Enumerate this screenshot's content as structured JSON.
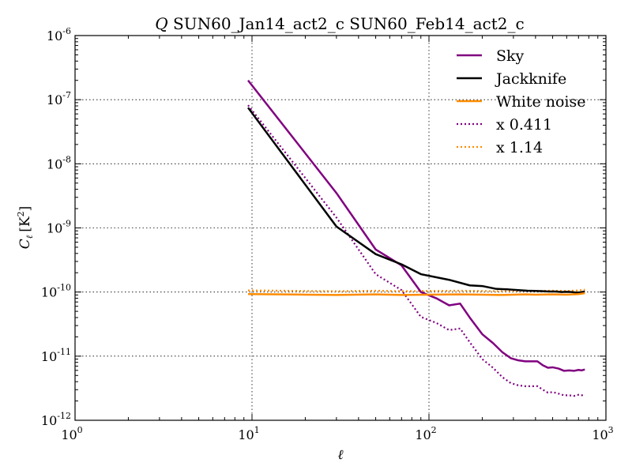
{
  "chart_data": {
    "type": "line",
    "title": "SUN60_Jan14_act2_c SUN60_Feb14_act2_c",
    "title_prefix": "Q",
    "xlabel": "ℓ",
    "ylabel": "Cℓ [K²]",
    "ylabel_parts": {
      "symbol": "C",
      "subscript": "ℓ",
      "unit": "[K",
      "power": "2",
      "close": "]"
    },
    "xscale": "log",
    "yscale": "log",
    "xlim": [
      1,
      1000
    ],
    "ylim": [
      1e-12,
      1e-06
    ],
    "grid": true,
    "legend_position": "top-right",
    "x_ticks": [
      {
        "base": "10",
        "exp": "0"
      },
      {
        "base": "10",
        "exp": "1"
      },
      {
        "base": "10",
        "exp": "2"
      },
      {
        "base": "10",
        "exp": "3"
      }
    ],
    "y_ticks": [
      {
        "base": "10",
        "exp": "-12"
      },
      {
        "base": "10",
        "exp": "-11"
      },
      {
        "base": "10",
        "exp": "-10"
      },
      {
        "base": "10",
        "exp": "-9"
      },
      {
        "base": "10",
        "exp": "-8"
      },
      {
        "base": "10",
        "exp": "-7"
      },
      {
        "base": "10",
        "exp": "-6"
      }
    ],
    "series": [
      {
        "name": "Sky",
        "color": "#800080",
        "style": "solid",
        "points": [
          [
            9.5,
            2e-07
          ],
          [
            30,
            3.5e-09
          ],
          [
            50,
            4.6e-10
          ],
          [
            70,
            2.6e-10
          ],
          [
            90,
            1e-10
          ],
          [
            110,
            8e-11
          ],
          [
            130,
            6.2e-11
          ],
          [
            150,
            6.6e-11
          ],
          [
            170,
            4e-11
          ],
          [
            200,
            2.2e-11
          ],
          [
            230,
            1.6e-11
          ],
          [
            260,
            1.15e-11
          ],
          [
            290,
            9.3e-12
          ],
          [
            320,
            8.6e-12
          ],
          [
            350,
            8.3e-12
          ],
          [
            380,
            8.3e-12
          ],
          [
            410,
            8.3e-12
          ],
          [
            440,
            7.2e-12
          ],
          [
            470,
            6.6e-12
          ],
          [
            500,
            6.7e-12
          ],
          [
            540,
            6.4e-12
          ],
          [
            580,
            5.9e-12
          ],
          [
            620,
            6e-12
          ],
          [
            660,
            5.9e-12
          ],
          [
            700,
            6.1e-12
          ],
          [
            730,
            6e-12
          ],
          [
            760,
            6.2e-12
          ]
        ]
      },
      {
        "name": "Jackknife",
        "color": "#000000",
        "style": "solid",
        "points": [
          [
            9.5,
            7.5e-08
          ],
          [
            30,
            1.05e-09
          ],
          [
            50,
            3.9e-10
          ],
          [
            70,
            2.7e-10
          ],
          [
            90,
            1.9e-10
          ],
          [
            130,
            1.55e-10
          ],
          [
            170,
            1.27e-10
          ],
          [
            200,
            1.24e-10
          ],
          [
            240,
            1.12e-10
          ],
          [
            280,
            1.1e-10
          ],
          [
            320,
            1.07e-10
          ],
          [
            360,
            1.05e-10
          ],
          [
            400,
            1.04e-10
          ],
          [
            440,
            1.03e-10
          ],
          [
            480,
            1.02e-10
          ],
          [
            520,
            1.02e-10
          ],
          [
            560,
            1e-10
          ],
          [
            600,
            1.01e-10
          ],
          [
            640,
            1e-10
          ],
          [
            680,
            9.8e-11
          ],
          [
            720,
            9.9e-11
          ],
          [
            760,
            1.02e-10
          ]
        ]
      },
      {
        "name": "White noise",
        "color": "#ff8c00",
        "style": "solid",
        "points": [
          [
            9.5,
            9.3e-11
          ],
          [
            15,
            9.2e-11
          ],
          [
            20,
            9.1e-11
          ],
          [
            30,
            9e-11
          ],
          [
            50,
            9.2e-11
          ],
          [
            70,
            9e-11
          ],
          [
            100,
            9.1e-11
          ],
          [
            150,
            9.2e-11
          ],
          [
            200,
            9.1e-11
          ],
          [
            250,
            9e-11
          ],
          [
            300,
            9.1e-11
          ],
          [
            350,
            9.2e-11
          ],
          [
            400,
            9.1e-11
          ],
          [
            500,
            9.2e-11
          ],
          [
            600,
            9.1e-11
          ],
          [
            700,
            9.3e-11
          ],
          [
            760,
            9.6e-11
          ]
        ]
      },
      {
        "name": "x 0.411",
        "color": "#800080",
        "style": "dotted",
        "points": [
          [
            9.5,
            8.2e-08
          ],
          [
            30,
            1.45e-09
          ],
          [
            50,
            1.9e-10
          ],
          [
            70,
            1.07e-10
          ],
          [
            90,
            4.1e-11
          ],
          [
            110,
            3.3e-11
          ],
          [
            130,
            2.55e-11
          ],
          [
            150,
            2.7e-11
          ],
          [
            170,
            1.65e-11
          ],
          [
            200,
            9e-12
          ],
          [
            230,
            6.6e-12
          ],
          [
            260,
            4.7e-12
          ],
          [
            290,
            3.8e-12
          ],
          [
            320,
            3.5e-12
          ],
          [
            350,
            3.4e-12
          ],
          [
            380,
            3.4e-12
          ],
          [
            410,
            3.4e-12
          ],
          [
            440,
            3e-12
          ],
          [
            470,
            2.7e-12
          ],
          [
            500,
            2.75e-12
          ],
          [
            540,
            2.6e-12
          ],
          [
            580,
            2.45e-12
          ],
          [
            620,
            2.45e-12
          ],
          [
            660,
            2.4e-12
          ],
          [
            700,
            2.5e-12
          ],
          [
            730,
            2.45e-12
          ],
          [
            760,
            2.55e-12
          ]
        ]
      },
      {
        "name": "x 1.14",
        "color": "#ff8c00",
        "style": "dotted",
        "points": [
          [
            9.5,
            1.06e-10
          ],
          [
            15,
            1.05e-10
          ],
          [
            20,
            1.04e-10
          ],
          [
            30,
            1.03e-10
          ],
          [
            50,
            1.05e-10
          ],
          [
            70,
            1.03e-10
          ],
          [
            100,
            1.04e-10
          ],
          [
            150,
            1.05e-10
          ],
          [
            200,
            1.04e-10
          ],
          [
            250,
            1.03e-10
          ],
          [
            300,
            1.04e-10
          ],
          [
            350,
            1.05e-10
          ],
          [
            400,
            1.04e-10
          ],
          [
            500,
            1.05e-10
          ],
          [
            600,
            1.04e-10
          ],
          [
            700,
            1.06e-10
          ],
          [
            760,
            1.09e-10
          ]
        ]
      }
    ]
  }
}
